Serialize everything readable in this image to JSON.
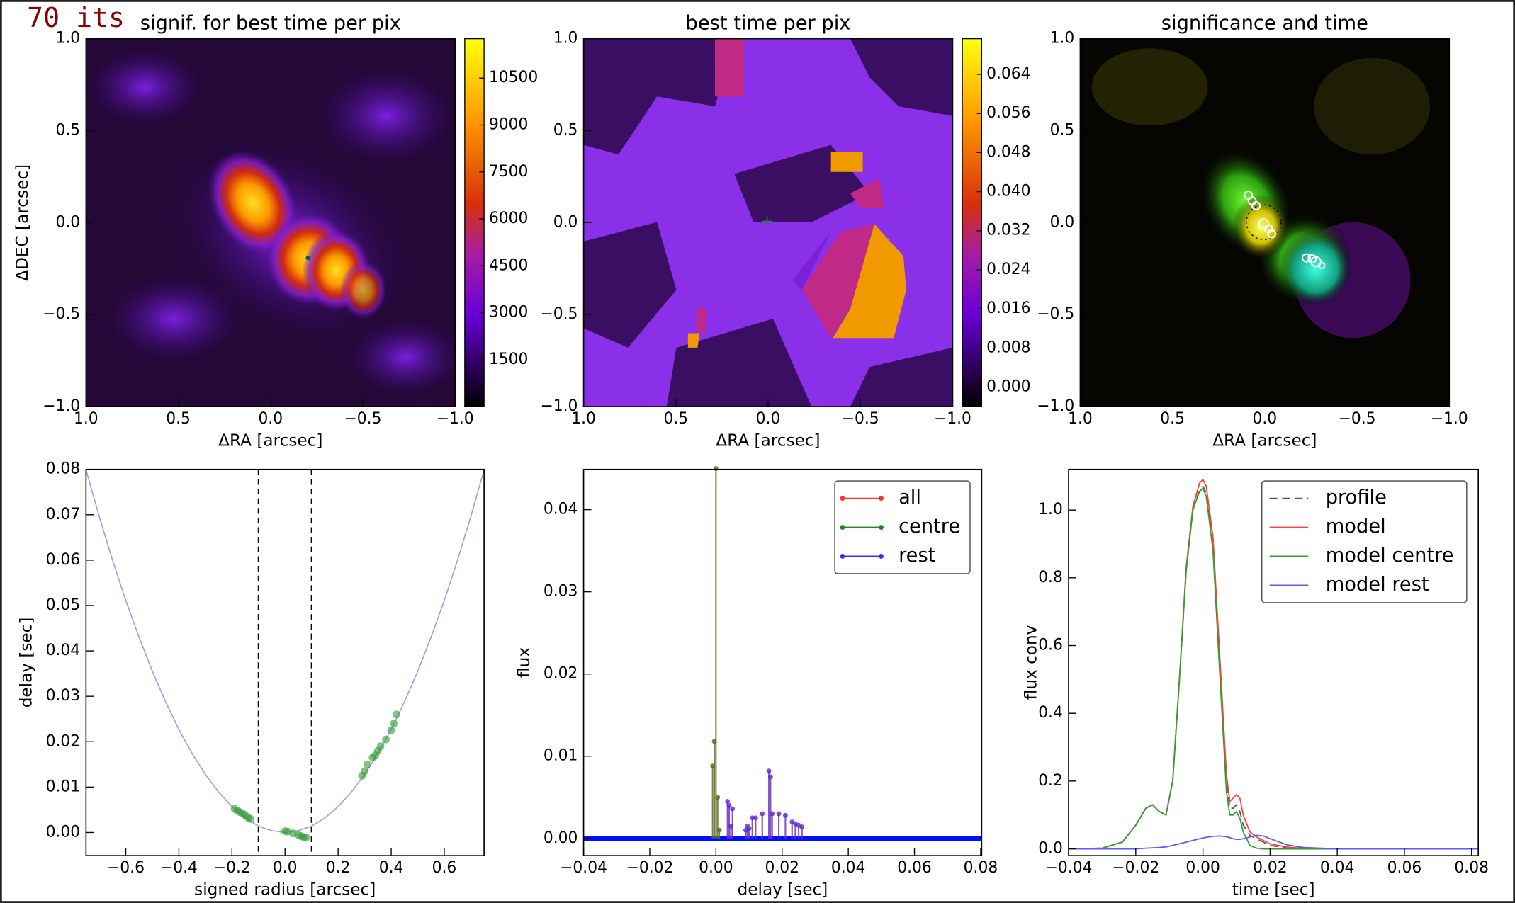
{
  "label": "70 its",
  "chart_data": [
    {
      "type": "image",
      "title": "signif. for best time per pix",
      "xlabel": "ΔRA [arcsec]",
      "ylabel": "ΔDEC [arcsec]",
      "xlim": [
        1.0,
        -1.0
      ],
      "ylim": [
        -1.0,
        1.0
      ],
      "xticks": [
        {
          "value": 1.0,
          "label": "1.0"
        },
        {
          "value": 0.5,
          "label": "0.5"
        },
        {
          "value": 0.0,
          "label": "0.0"
        },
        {
          "value": -0.5,
          "label": "−0.5"
        },
        {
          "value": -1.0,
          "label": "−1.0"
        }
      ],
      "yticks": [
        {
          "value": -1.0,
          "label": "−1.0"
        },
        {
          "value": -0.5,
          "label": "−0.5"
        },
        {
          "value": 0.0,
          "label": "0.0"
        },
        {
          "value": 0.5,
          "label": "0.5"
        },
        {
          "value": 1.0,
          "label": "1.0"
        }
      ],
      "clim": [
        0,
        11760
      ],
      "cticks": [
        1500,
        3000,
        4500,
        6000,
        7500,
        9000,
        10500
      ]
    },
    {
      "type": "image",
      "title": "best time per pix",
      "xlabel": "ΔRA [arcsec]",
      "xlim": [
        1.0,
        -1.0
      ],
      "ylim": [
        -1.0,
        1.0
      ],
      "xticks": [
        {
          "value": 1.0,
          "label": "1.0"
        },
        {
          "value": 0.5,
          "label": "0.5"
        },
        {
          "value": 0.0,
          "label": "0.0"
        },
        {
          "value": -0.5,
          "label": "−0.5"
        },
        {
          "value": -1.0,
          "label": "−1.0"
        }
      ],
      "yticks": [
        {
          "value": -1.0,
          "label": "−1.0"
        },
        {
          "value": -0.5,
          "label": "−0.5"
        },
        {
          "value": 0.0,
          "label": "0.0"
        },
        {
          "value": 0.5,
          "label": "0.5"
        },
        {
          "value": 1.0,
          "label": "1.0"
        }
      ],
      "clim": [
        -0.004,
        0.0713
      ],
      "cticks": [
        {
          "value": 0.0,
          "label": "0.000"
        },
        {
          "value": 0.008,
          "label": "0.008"
        },
        {
          "value": 0.016,
          "label": "0.016"
        },
        {
          "value": 0.024,
          "label": "0.024"
        },
        {
          "value": 0.032,
          "label": "0.032"
        },
        {
          "value": 0.04,
          "label": "0.040"
        },
        {
          "value": 0.048,
          "label": "0.048"
        },
        {
          "value": 0.056,
          "label": "0.056"
        },
        {
          "value": 0.064,
          "label": "0.064"
        }
      ]
    },
    {
      "type": "image",
      "title": "significance and time",
      "xlabel": "ΔRA [arcsec]",
      "xlim": [
        1.0,
        -1.0
      ],
      "ylim": [
        -1.0,
        1.0
      ],
      "xticks": [
        {
          "value": 1.0,
          "label": "1.0"
        },
        {
          "value": 0.5,
          "label": "0.5"
        },
        {
          "value": 0.0,
          "label": "0.0"
        },
        {
          "value": -0.5,
          "label": "−0.5"
        },
        {
          "value": -1.0,
          "label": "−1.0"
        }
      ],
      "yticks": [
        {
          "value": -1.0,
          "label": "−1.0"
        },
        {
          "value": -0.5,
          "label": "−0.5"
        },
        {
          "value": 0.0,
          "label": "0.0"
        },
        {
          "value": 0.5,
          "label": "0.5"
        },
        {
          "value": 1.0,
          "label": "1.0"
        }
      ]
    },
    {
      "type": "scatter",
      "xlabel": "signed radius [arcsec]",
      "ylabel": "delay [sec]",
      "xlim": [
        -0.75,
        0.75
      ],
      "ylim": [
        -0.0051,
        0.08
      ],
      "xticks": [
        {
          "value": -0.6,
          "label": "−0.6"
        },
        {
          "value": -0.4,
          "label": "−0.4"
        },
        {
          "value": -0.2,
          "label": "−0.2"
        },
        {
          "value": 0.0,
          "label": "0.0"
        },
        {
          "value": 0.2,
          "label": "0.2"
        },
        {
          "value": 0.4,
          "label": "0.4"
        },
        {
          "value": 0.6,
          "label": "0.6"
        }
      ],
      "yticks": [
        {
          "value": 0.0,
          "label": "0.00"
        },
        {
          "value": 0.01,
          "label": "0.01"
        },
        {
          "value": 0.02,
          "label": "0.02"
        },
        {
          "value": 0.03,
          "label": "0.03"
        },
        {
          "value": 0.04,
          "label": "0.04"
        },
        {
          "value": 0.05,
          "label": "0.05"
        },
        {
          "value": 0.06,
          "label": "0.06"
        },
        {
          "value": 0.07,
          "label": "0.07"
        },
        {
          "value": 0.08,
          "label": "0.08"
        }
      ],
      "vlines": [
        -0.1,
        0.1
      ],
      "curve": {
        "color": "#9f9ff0",
        "x": [
          -0.75,
          -0.7,
          -0.65,
          -0.6,
          -0.55,
          -0.5,
          -0.45,
          -0.4,
          -0.35,
          -0.3,
          -0.25,
          -0.2,
          -0.15,
          -0.1,
          -0.05,
          0,
          0.05,
          0.1,
          0.15,
          0.2,
          0.25,
          0.3,
          0.35,
          0.4,
          0.45,
          0.5,
          0.55,
          0.6,
          0.65,
          0.7,
          0.75
        ],
        "values": [
          0.0799,
          0.0696,
          0.06,
          0.0511,
          0.043,
          0.0355,
          0.0288,
          0.0227,
          0.0174,
          0.0128,
          0.0089,
          0.0057,
          0.0032,
          0.0014,
          0.0004,
          0,
          0.0004,
          0.0014,
          0.0032,
          0.0057,
          0.0089,
          0.0128,
          0.0174,
          0.0227,
          0.0288,
          0.0355,
          0.043,
          0.0511,
          0.06,
          0.0696,
          0.0799
        ]
      },
      "points": {
        "color": "#2e9a2e",
        "x": [
          -0.19,
          -0.18,
          -0.17,
          -0.16,
          -0.15,
          -0.14,
          -0.13,
          0.0,
          0.01,
          0.03,
          0.05,
          0.06,
          0.07,
          0.08,
          0.29,
          0.3,
          0.31,
          0.33,
          0.34,
          0.35,
          0.36,
          0.38,
          0.4,
          0.41,
          0.42
        ],
        "values": [
          0.0052,
          0.0048,
          0.0045,
          0.0042,
          0.0038,
          0.0033,
          0.003,
          0.0003,
          0.0002,
          -0.0002,
          -0.0005,
          -0.0008,
          -0.001,
          -0.0011,
          0.0125,
          0.0135,
          0.015,
          0.0165,
          0.017,
          0.018,
          0.019,
          0.0205,
          0.0225,
          0.024,
          0.026
        ]
      }
    },
    {
      "type": "stem",
      "xlabel": "delay [sec]",
      "ylabel": "flux",
      "legend": "upper right",
      "xlim": [
        -0.04,
        0.0803
      ],
      "ylim": [
        -0.0021,
        0.0449
      ],
      "xticks": [
        {
          "value": -0.04,
          "label": "−0.04"
        },
        {
          "value": -0.02,
          "label": "−0.02"
        },
        {
          "value": 0.0,
          "label": "0.00"
        },
        {
          "value": 0.02,
          "label": "0.02"
        },
        {
          "value": 0.04,
          "label": "0.04"
        },
        {
          "value": 0.06,
          "label": "0.06"
        },
        {
          "value": 0.08,
          "label": "0.08"
        }
      ],
      "yticks": [
        {
          "value": 0.0,
          "label": "0.00"
        },
        {
          "value": 0.01,
          "label": "0.01"
        },
        {
          "value": 0.02,
          "label": "0.02"
        },
        {
          "value": 0.03,
          "label": "0.03"
        },
        {
          "value": 0.04,
          "label": "0.04"
        }
      ],
      "series": [
        {
          "name": "all",
          "color": "#ff3030",
          "x": [
            -0.001,
            -0.0005,
            0.0,
            0.0005,
            0.001,
            0.0035,
            0.004,
            0.0045,
            0.005,
            0.009,
            0.0095,
            0.01,
            0.011,
            0.012,
            0.014,
            0.016,
            0.0165,
            0.017,
            0.019,
            0.021,
            0.023,
            0.024,
            0.025,
            0.026
          ],
          "values": [
            0.0088,
            0.0118,
            0.045,
            0.005,
            0.001,
            0.0045,
            0.004,
            0.0015,
            0.0036,
            0.001,
            0.0015,
            0.0012,
            0.0025,
            0.0025,
            0.003,
            0.0082,
            0.0075,
            0.003,
            0.003,
            0.0028,
            0.002,
            0.0018,
            0.0016,
            0.0014
          ]
        },
        {
          "name": "centre",
          "color": "#1a8a1a",
          "x": [
            -0.001,
            -0.0005,
            0.0,
            0.0005,
            0.001
          ],
          "values": [
            0.0088,
            0.0118,
            0.045,
            0.005,
            0.001
          ]
        },
        {
          "name": "rest",
          "color": "#3030ff",
          "x": [
            0.0035,
            0.004,
            0.0045,
            0.005,
            0.009,
            0.0095,
            0.01,
            0.011,
            0.012,
            0.014,
            0.016,
            0.0165,
            0.017,
            0.019,
            0.021,
            0.023,
            0.024,
            0.025,
            0.026
          ],
          "values": [
            0.0045,
            0.004,
            0.0015,
            0.0036,
            0.001,
            0.0015,
            0.0012,
            0.0025,
            0.0025,
            0.003,
            0.0082,
            0.0075,
            0.003,
            0.003,
            0.0028,
            0.002,
            0.0018,
            0.0016,
            0.0014
          ]
        }
      ]
    },
    {
      "type": "line",
      "xlabel": "time [sec]",
      "ylabel": "flux conv",
      "legend": "upper right",
      "xlim": [
        -0.04,
        0.082
      ],
      "ylim": [
        -0.02,
        1.12
      ],
      "xticks": [
        {
          "value": -0.04,
          "label": "−0.04"
        },
        {
          "value": -0.02,
          "label": "−0.02"
        },
        {
          "value": 0.0,
          "label": "0.00"
        },
        {
          "value": 0.02,
          "label": "0.02"
        },
        {
          "value": 0.04,
          "label": "0.04"
        },
        {
          "value": 0.06,
          "label": "0.06"
        },
        {
          "value": 0.08,
          "label": "0.08"
        }
      ],
      "yticks": [
        {
          "value": 0.0,
          "label": "0.0"
        },
        {
          "value": 0.2,
          "label": "0.2"
        },
        {
          "value": 0.4,
          "label": "0.4"
        },
        {
          "value": 0.6,
          "label": "0.6"
        },
        {
          "value": 0.8,
          "label": "0.8"
        },
        {
          "value": 1.0,
          "label": "1.0"
        }
      ],
      "x": [
        -0.04,
        -0.03,
        -0.024,
        -0.02,
        -0.017,
        -0.015,
        -0.013,
        -0.011,
        -0.009,
        -0.007,
        -0.005,
        -0.003,
        -0.001,
        0,
        0.001,
        0.003,
        0.005,
        0.007,
        0.008,
        0.009,
        0.01,
        0.011,
        0.012,
        0.014,
        0.016,
        0.018,
        0.02,
        0.025,
        0.03,
        0.04,
        0.082
      ],
      "series": [
        {
          "name": "profile",
          "color": "#555555",
          "dash": true,
          "values": [
            0,
            0.002,
            0.02,
            0.07,
            0.12,
            0.13,
            0.11,
            0.1,
            0.2,
            0.5,
            0.82,
            1.0,
            1.06,
            1.07,
            1.05,
            0.9,
            0.55,
            0.2,
            0.12,
            0.12,
            0.13,
            0.11,
            0.07,
            0.04,
            0.03,
            0.02,
            0.01,
            0.003,
            0.001,
            0,
            0
          ]
        },
        {
          "name": "model",
          "color": "#ff4040",
          "values": [
            0,
            0.002,
            0.02,
            0.07,
            0.12,
            0.13,
            0.11,
            0.1,
            0.2,
            0.5,
            0.83,
            1.01,
            1.08,
            1.09,
            1.07,
            0.92,
            0.57,
            0.22,
            0.14,
            0.15,
            0.16,
            0.15,
            0.1,
            0.05,
            0.035,
            0.025,
            0.015,
            0.005,
            0.002,
            0,
            0
          ]
        },
        {
          "name": "model centre",
          "color": "#2f9f2f",
          "values": [
            0,
            0.002,
            0.02,
            0.07,
            0.12,
            0.13,
            0.11,
            0.1,
            0.2,
            0.5,
            0.82,
            1.0,
            1.055,
            1.065,
            1.04,
            0.88,
            0.52,
            0.17,
            0.1,
            0.1,
            0.11,
            0.09,
            0.05,
            0.01,
            0.002,
            0,
            0,
            0,
            0,
            0,
            0
          ]
        },
        {
          "name": "model rest",
          "color": "#5a5aff",
          "values": [
            0,
            0,
            0,
            0,
            0.002,
            0.003,
            0.004,
            0.006,
            0.01,
            0.015,
            0.02,
            0.025,
            0.03,
            0.032,
            0.034,
            0.037,
            0.038,
            0.036,
            0.033,
            0.03,
            0.028,
            0.028,
            0.03,
            0.035,
            0.04,
            0.038,
            0.03,
            0.012,
            0.004,
            0,
            0
          ]
        }
      ]
    }
  ]
}
